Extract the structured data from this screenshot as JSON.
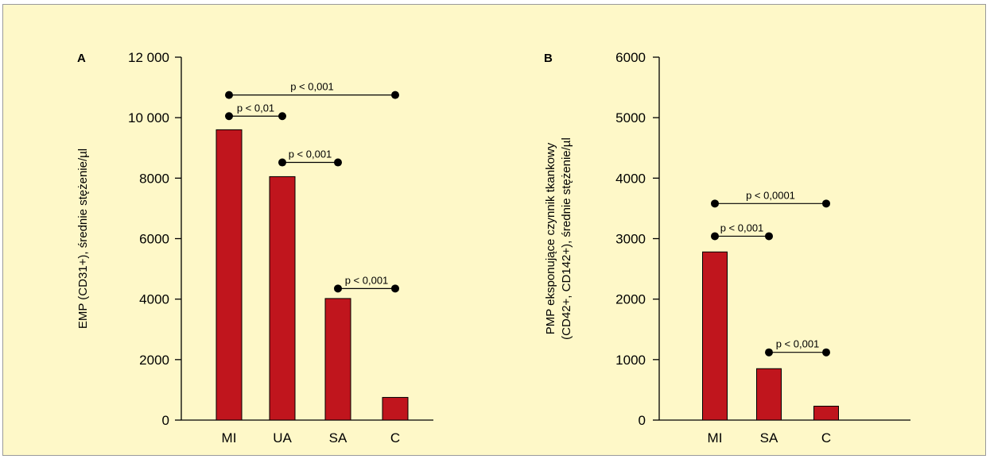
{
  "colors": {
    "background": "#fef8c8",
    "bar": "#c0151d",
    "axis": "#000000"
  },
  "chart_data": [
    {
      "type": "bar",
      "panel_label": "A",
      "categories": [
        "MI",
        "UA",
        "SA",
        "C"
      ],
      "values": [
        9600,
        8050,
        4020,
        750
      ],
      "ylabel": "EMP (CD31+), średnie stężenie/µl",
      "ylim": [
        0,
        12000
      ],
      "y_ticks": [
        0,
        2000,
        4000,
        6000,
        8000,
        10000,
        12000
      ],
      "y_tick_labels": [
        "0",
        "2000",
        "4000",
        "6000",
        "8000",
        "10 000",
        "12 000"
      ],
      "grid": false,
      "significance": [
        {
          "from": "MI",
          "to": "C",
          "y": 10750,
          "label": "p < 0,001"
        },
        {
          "from": "MI",
          "to": "UA",
          "y": 10050,
          "label": "p < 0,01"
        },
        {
          "from": "UA",
          "to": "SA",
          "y": 8520,
          "label": "p < 0,001"
        },
        {
          "from": "SA",
          "to": "C",
          "y": 4350,
          "label": "p < 0,001"
        }
      ]
    },
    {
      "type": "bar",
      "panel_label": "B",
      "categories": [
        "MI",
        "SA",
        "C"
      ],
      "values": [
        2780,
        850,
        230
      ],
      "ylabel": [
        "PMP eksponujące czynnik tkankowy",
        "(CD42+, CD142+), średnie stężenie/µl"
      ],
      "ylim": [
        0,
        6000
      ],
      "y_ticks": [
        0,
        1000,
        2000,
        3000,
        4000,
        5000,
        6000
      ],
      "y_tick_labels": [
        "0",
        "1000",
        "2000",
        "3000",
        "4000",
        "5000",
        "6000"
      ],
      "grid": false,
      "significance": [
        {
          "from": "MI",
          "to": "C",
          "y": 3580,
          "label": "p < 0,0001"
        },
        {
          "from": "MI",
          "to": "SA",
          "y": 3040,
          "label": "p < 0,001"
        },
        {
          "from": "SA",
          "to": "C",
          "y": 1120,
          "label": "p < 0,001"
        }
      ]
    }
  ]
}
